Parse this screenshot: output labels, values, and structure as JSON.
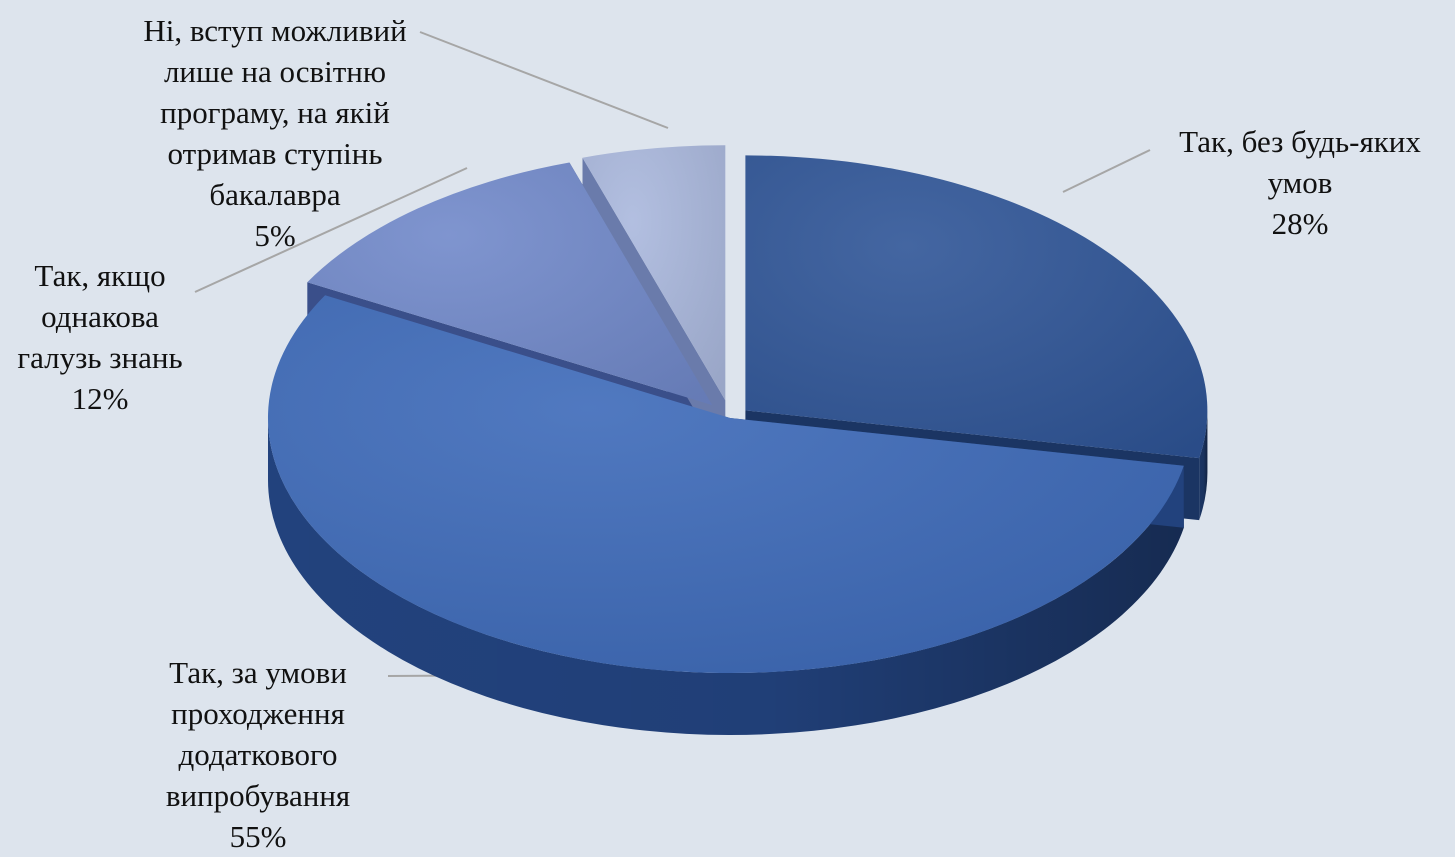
{
  "chart_data": {
    "type": "pie",
    "title": "",
    "slices": [
      {
        "label_lines": [
          "Так, без будь-яких",
          "умов"
        ],
        "percent_label": "28%",
        "value": 28
      },
      {
        "label_lines": [
          "Так, за умови",
          "проходження",
          "додаткового",
          "випробування"
        ],
        "percent_label": "55%",
        "value": 55
      },
      {
        "label_lines": [
          "Так, якщо",
          "однакова",
          "галузь знань"
        ],
        "percent_label": "12%",
        "value": 12
      },
      {
        "label_lines": [
          "Ні, вступ можливий",
          "лише на освітню",
          "програму, на якій",
          "отримав ступінь",
          "бакалавра"
        ],
        "percent_label": "5%",
        "value": 5
      }
    ],
    "colors": {
      "slice_top": [
        "#2f5597",
        "#3d6ab9",
        "#7189ca",
        "#aab8dd"
      ],
      "slice_side": [
        "#1b3563",
        "#22427d",
        "#3a4f8a",
        "#6a7bab"
      ],
      "leader_line": "#a6a6a6",
      "background": "#dde4ed"
    },
    "legend": "none",
    "style": "3d-exploded"
  }
}
